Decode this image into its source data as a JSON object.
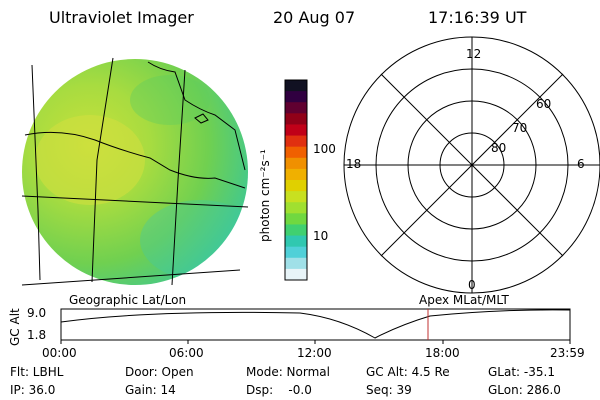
{
  "header": {
    "title": "Ultraviolet Imager",
    "date": "20 Aug 07",
    "time": "17:16:39 UT"
  },
  "colorbar": {
    "label": "photon cm⁻²s⁻¹",
    "ticks": [
      "100",
      "10"
    ],
    "colors": [
      "#111122",
      "#300040",
      "#600030",
      "#900018",
      "#c00018",
      "#e03010",
      "#f06000",
      "#f09000",
      "#f0b000",
      "#e0d000",
      "#c8e020",
      "#a0e030",
      "#70d840",
      "#40d070",
      "#30c8b0",
      "#50d0d8",
      "#a0e0e8",
      "#e8f4f8"
    ]
  },
  "polar_plot": {
    "labels": {
      "top": "12",
      "bottom": "0",
      "left": "18",
      "right": "6",
      "ring_60": "60",
      "ring_70": "70",
      "ring_80": "80"
    }
  },
  "strip": {
    "left_label": "Geographic Lat/Lon",
    "right_label": "Apex  MLat/MLT",
    "axis_label": "GC Alt",
    "y_ticks": [
      "9.0",
      "1.8"
    ],
    "x_ticks": [
      "00:00",
      "06:00",
      "12:00",
      "18:00",
      "23:59"
    ],
    "marker_time": "17:16:39"
  },
  "info": {
    "flt": "Flt: LBHL",
    "ip": "IP: 36.0",
    "door": "Door: Open",
    "gain": "Gain: 14",
    "mode": "Mode: Normal",
    "dsp": "Dsp:    -0.0",
    "gc_alt": "GC Alt: 4.5 Re",
    "seq": "Seq: 39",
    "glat": "GLat: -35.1",
    "glon": "GLon: 286.0"
  }
}
